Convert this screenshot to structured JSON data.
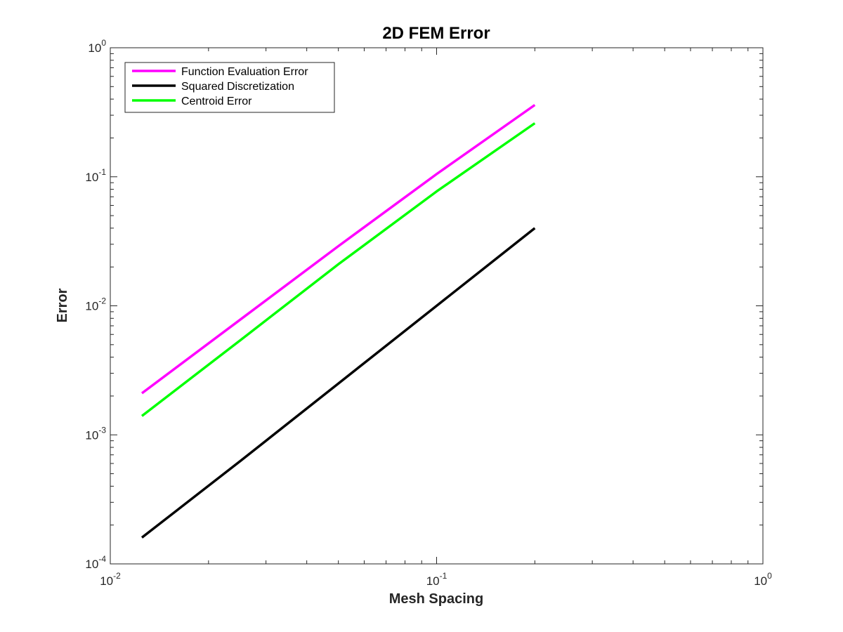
{
  "chart_data": {
    "type": "line",
    "title": "2D FEM Error",
    "xlabel": "Mesh Spacing",
    "ylabel": "Error",
    "x_scale": "log",
    "y_scale": "log",
    "xlim": [
      0.01,
      1
    ],
    "ylim": [
      0.0001,
      1
    ],
    "grid": false,
    "legend_position": "top-left",
    "x_ticks": [
      {
        "value": 0.01,
        "base": "10",
        "exp": "-2"
      },
      {
        "value": 0.1,
        "base": "10",
        "exp": "-1"
      },
      {
        "value": 1,
        "base": "10",
        "exp": "0"
      }
    ],
    "y_ticks": [
      {
        "value": 0.0001,
        "base": "10",
        "exp": "-4"
      },
      {
        "value": 0.001,
        "base": "10",
        "exp": "-3"
      },
      {
        "value": 0.01,
        "base": "10",
        "exp": "-2"
      },
      {
        "value": 0.1,
        "base": "10",
        "exp": "-1"
      },
      {
        "value": 1,
        "base": "10",
        "exp": "0"
      }
    ],
    "series": [
      {
        "name": "Function Evaluation Error",
        "color": "#ff00ff",
        "x": [
          0.0125,
          0.025,
          0.05,
          0.1,
          0.2
        ],
        "y": [
          0.0021,
          0.0078,
          0.029,
          0.105,
          0.36
        ]
      },
      {
        "name": "Squared Discretization",
        "color": "#000000",
        "x": [
          0.0125,
          0.025,
          0.05,
          0.1,
          0.2
        ],
        "y": [
          0.00016,
          0.000625,
          0.0025,
          0.01,
          0.04
        ]
      },
      {
        "name": "Centroid Error",
        "color": "#00ff00",
        "x": [
          0.0125,
          0.025,
          0.05,
          0.1,
          0.2
        ],
        "y": [
          0.0014,
          0.0054,
          0.021,
          0.077,
          0.26
        ]
      }
    ]
  }
}
